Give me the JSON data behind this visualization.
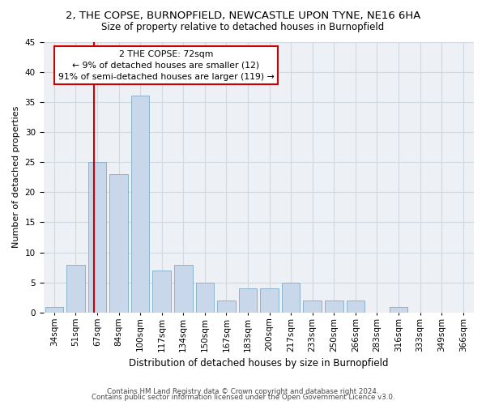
{
  "title": "2, THE COPSE, BURNOPFIELD, NEWCASTLE UPON TYNE, NE16 6HA",
  "subtitle": "Size of property relative to detached houses in Burnopfield",
  "xlabel": "Distribution of detached houses by size in Burnopfield",
  "ylabel": "Number of detached properties",
  "bin_labels": [
    "34sqm",
    "51sqm",
    "67sqm",
    "84sqm",
    "100sqm",
    "117sqm",
    "134sqm",
    "150sqm",
    "167sqm",
    "183sqm",
    "200sqm",
    "217sqm",
    "233sqm",
    "250sqm",
    "266sqm",
    "283sqm",
    "316sqm",
    "333sqm",
    "349sqm",
    "366sqm"
  ],
  "bar_values": [
    1,
    8,
    25,
    23,
    36,
    7,
    8,
    5,
    2,
    4,
    4,
    5,
    2,
    2,
    2,
    0,
    1,
    0,
    0,
    0
  ],
  "bar_color": "#c8d8ea",
  "bar_edge_color": "#8ab4cc",
  "red_line_color": "#cc0000",
  "red_line_bin": 2,
  "annotation_title": "2 THE COPSE: 72sqm",
  "annotation_line1": "← 9% of detached houses are smaller (12)",
  "annotation_line2": "91% of semi-detached houses are larger (119) →",
  "annotation_box_color": "#ffffff",
  "annotation_box_edge": "#cc0000",
  "ylim": [
    0,
    45
  ],
  "yticks": [
    0,
    5,
    10,
    15,
    20,
    25,
    30,
    35,
    40,
    45
  ],
  "footer1": "Contains HM Land Registry data © Crown copyright and database right 2024.",
  "footer2": "Contains public sector information licensed under the Open Government Licence v3.0.",
  "grid_color": "#d0d8e0",
  "background_color": "#edf1f6",
  "fig_width": 6.0,
  "fig_height": 5.0,
  "title_fontsize": 9.5,
  "subtitle_fontsize": 8.5,
  "ylabel_fontsize": 8.0,
  "xlabel_fontsize": 8.5,
  "tick_fontsize": 7.5,
  "ann_fontsize": 7.8,
  "footer_fontsize": 6.2
}
